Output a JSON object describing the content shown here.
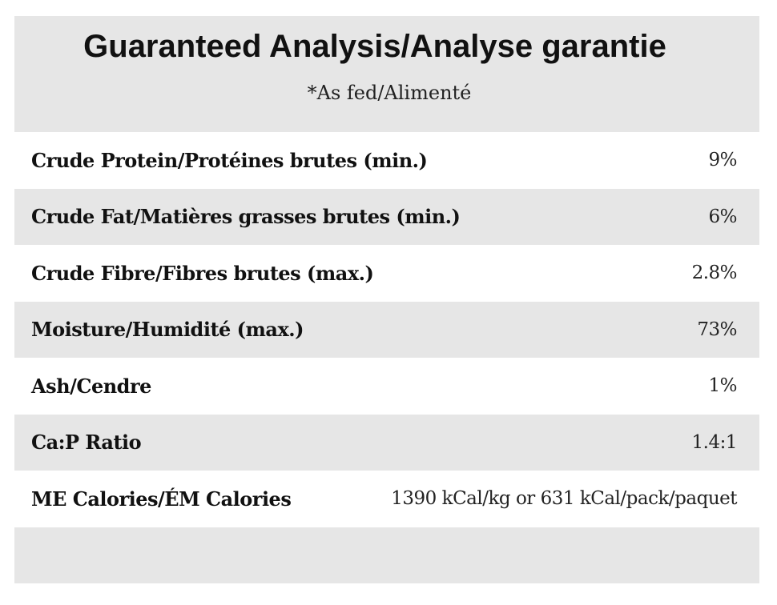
{
  "header": {
    "title": "Guaranteed Analysis/Analyse garantie",
    "subtitle": "*As fed/Alimenté"
  },
  "table": {
    "rows": [
      [
        "Crude Protein/Protéines brutes (min.)",
        "9%"
      ],
      [
        "Crude Fat/Matières grasses brutes (min.)",
        "6%"
      ],
      [
        "Crude Fibre/Fibres brutes (max.)",
        "2.8%"
      ],
      [
        "Moisture/Humidité (max.)",
        "73%"
      ],
      [
        "Ash/Cendre",
        "1%"
      ],
      [
        "Ca:P Ratio",
        "1.4:1"
      ],
      [
        "ME Calories/ÉM Calories",
        "1390 kCal/kg or 631 kCal/pack/paquet"
      ]
    ]
  }
}
